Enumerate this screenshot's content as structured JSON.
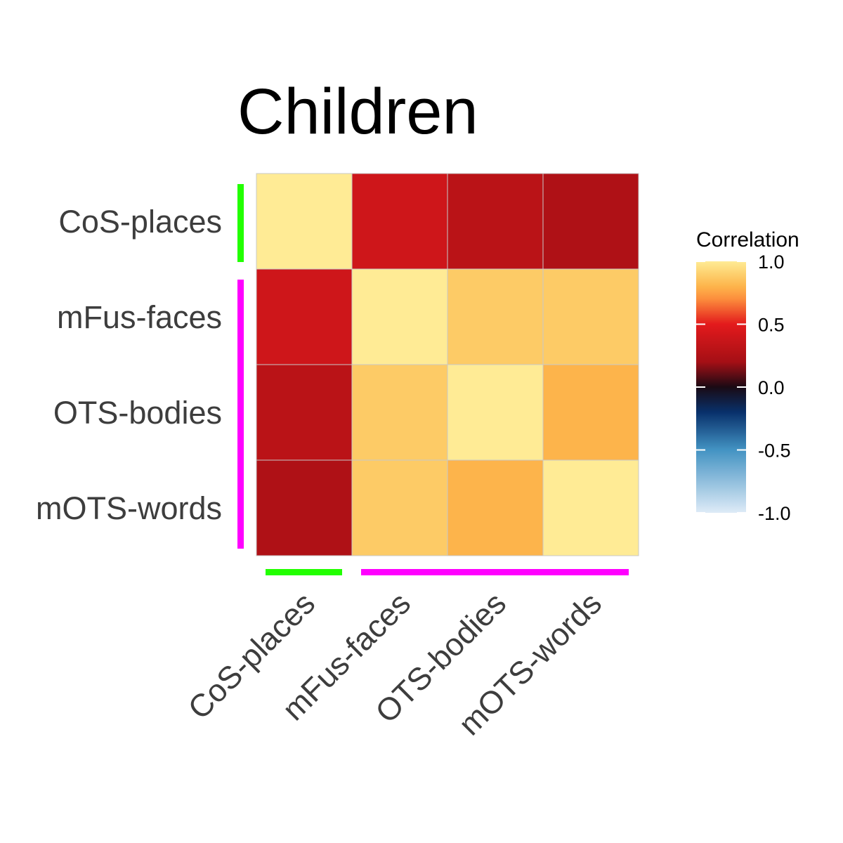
{
  "chart_data": {
    "type": "heatmap",
    "title": "Children",
    "rows": [
      "CoS-places",
      "mFus-faces",
      "OTS-bodies",
      "mOTS-words"
    ],
    "cols": [
      "CoS-places",
      "mFus-faces",
      "OTS-bodies",
      "mOTS-words"
    ],
    "values": [
      [
        1.0,
        0.4,
        0.3,
        0.25
      ],
      [
        0.4,
        1.0,
        0.88,
        0.88
      ],
      [
        0.3,
        0.88,
        1.0,
        0.8
      ],
      [
        0.25,
        0.88,
        0.8,
        1.0
      ]
    ],
    "row_groups": [
      {
        "rows": [
          0,
          0
        ],
        "color": "#22ff00"
      },
      {
        "rows": [
          1,
          3
        ],
        "color": "#ff00ff"
      }
    ],
    "legend": {
      "title": "Correlation",
      "range": [
        -1.0,
        1.0
      ],
      "ticks": [
        "1.0",
        "0.5",
        "0.0",
        "-0.5",
        "-1.0"
      ],
      "tick_values": [
        1.0,
        0.5,
        0.0,
        -0.5,
        -1.0
      ],
      "placement": "right"
    },
    "colormap": [
      {
        "v": -1.0,
        "c": "#deebf7"
      },
      {
        "v": -0.5,
        "c": "#4393c3"
      },
      {
        "v": -0.2,
        "c": "#08306b"
      },
      {
        "v": 0.0,
        "c": "#1a0a14"
      },
      {
        "v": 0.2,
        "c": "#a50f15"
      },
      {
        "v": 0.5,
        "c": "#e31a1c"
      },
      {
        "v": 0.7,
        "c": "#fc8d3c"
      },
      {
        "v": 0.8,
        "c": "#fdb44b"
      },
      {
        "v": 0.88,
        "c": "#fdcb66"
      },
      {
        "v": 1.0,
        "c": "#ffeb95"
      }
    ]
  }
}
